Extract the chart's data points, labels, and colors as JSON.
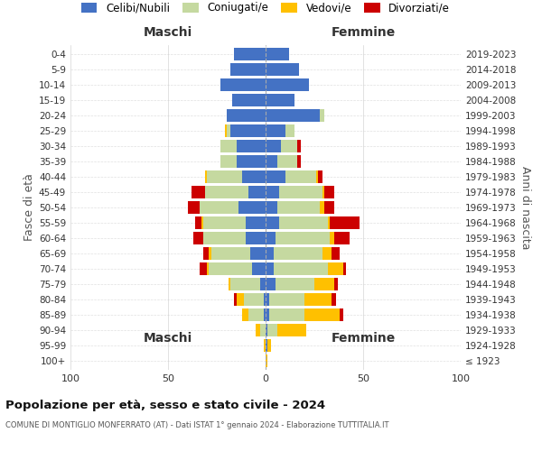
{
  "age_groups": [
    "100+",
    "95-99",
    "90-94",
    "85-89",
    "80-84",
    "75-79",
    "70-74",
    "65-69",
    "60-64",
    "55-59",
    "50-54",
    "45-49",
    "40-44",
    "35-39",
    "30-34",
    "25-29",
    "20-24",
    "15-19",
    "10-14",
    "5-9",
    "0-4"
  ],
  "birth_years": [
    "≤ 1923",
    "1924-1928",
    "1929-1933",
    "1934-1938",
    "1939-1943",
    "1944-1948",
    "1949-1953",
    "1954-1958",
    "1959-1963",
    "1964-1968",
    "1969-1973",
    "1974-1978",
    "1979-1983",
    "1984-1988",
    "1989-1993",
    "1994-1998",
    "1999-2003",
    "2004-2008",
    "2009-2013",
    "2014-2018",
    "2019-2023"
  ],
  "colors": {
    "celibi": "#4472c4",
    "coniugati": "#c5d9a0",
    "vedovi": "#ffc000",
    "divorziati": "#cc0000"
  },
  "maschi": {
    "celibi": [
      0,
      0,
      0,
      1,
      1,
      3,
      7,
      8,
      10,
      10,
      14,
      9,
      12,
      15,
      15,
      18,
      20,
      17,
      23,
      18,
      16
    ],
    "coniugati": [
      0,
      0,
      3,
      8,
      10,
      15,
      22,
      20,
      22,
      22,
      20,
      22,
      18,
      8,
      8,
      2,
      0,
      0,
      0,
      0,
      0
    ],
    "vedovi": [
      0,
      1,
      2,
      3,
      4,
      1,
      1,
      1,
      0,
      1,
      0,
      0,
      1,
      0,
      0,
      1,
      0,
      0,
      0,
      0,
      0
    ],
    "divorziati": [
      0,
      0,
      0,
      0,
      1,
      0,
      4,
      3,
      5,
      3,
      6,
      7,
      0,
      0,
      0,
      0,
      0,
      0,
      0,
      0,
      0
    ]
  },
  "femmine": {
    "celibi": [
      0,
      1,
      1,
      2,
      2,
      5,
      4,
      4,
      5,
      7,
      6,
      7,
      10,
      6,
      8,
      10,
      28,
      15,
      22,
      17,
      12
    ],
    "coniugati": [
      0,
      0,
      5,
      18,
      18,
      20,
      28,
      25,
      28,
      25,
      22,
      22,
      16,
      10,
      8,
      5,
      2,
      0,
      0,
      0,
      0
    ],
    "vedovi": [
      1,
      2,
      15,
      18,
      14,
      10,
      8,
      5,
      2,
      1,
      2,
      1,
      1,
      0,
      0,
      0,
      0,
      0,
      0,
      0,
      0
    ],
    "divorziati": [
      0,
      0,
      0,
      2,
      2,
      2,
      1,
      4,
      8,
      15,
      5,
      5,
      2,
      2,
      2,
      0,
      0,
      0,
      0,
      0,
      0
    ]
  },
  "xlim": 100,
  "title": "Popolazione per età, sesso e stato civile - 2024",
  "subtitle": "COMUNE DI MONTIGLIO MONFERRATO (AT) - Dati ISTAT 1° gennaio 2024 - Elaborazione TUTTITALIA.IT",
  "ylabel_left": "Fasce di età",
  "ylabel_right": "Anni di nascita",
  "legend_labels": [
    "Celibi/Nubili",
    "Coniugati/e",
    "Vedovi/e",
    "Divorziati/e"
  ],
  "maschi_label": "Maschi",
  "femmine_label": "Femmine",
  "bar_height": 0.82,
  "bg_color": "#ffffff"
}
